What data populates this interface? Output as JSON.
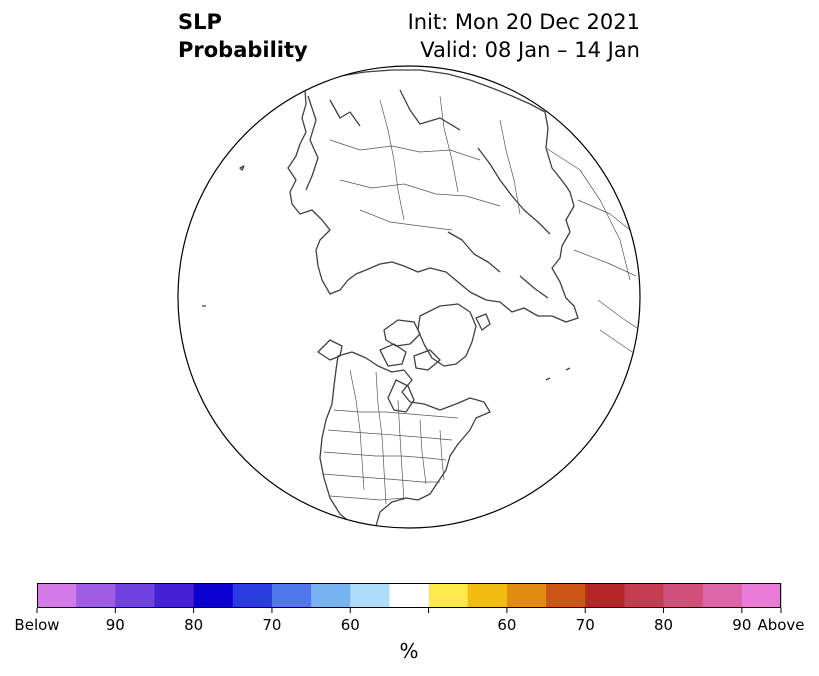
{
  "title": {
    "line1": "SLP",
    "line2": "Probability",
    "init": "Init: Mon 20 Dec 2021",
    "valid": "Valid: 08 Jan – 14 Jan"
  },
  "map": {
    "projection": "north-polar-orthographic",
    "region": "Northern Hemisphere (North America, Arctic, Eurasia)",
    "land_fill": "#ffffff",
    "coastline_color": "#404040"
  },
  "colorbar": {
    "unit_label": "%",
    "colors": [
      "#d57ae9",
      "#a05ce3",
      "#7040e0",
      "#4420d8",
      "#0a00d2",
      "#2a3ce0",
      "#5078ea",
      "#78b4f2",
      "#aedcfa",
      "#ffffff",
      "#ffe84a",
      "#f2bc10",
      "#e08c12",
      "#cc5618",
      "#b42626",
      "#c43c50",
      "#d0507c",
      "#dc64a8",
      "#e87ad8"
    ],
    "tick_labels": [
      "Below",
      "90",
      "80",
      "70",
      "60",
      "60",
      "70",
      "80",
      "90",
      "Above"
    ]
  }
}
